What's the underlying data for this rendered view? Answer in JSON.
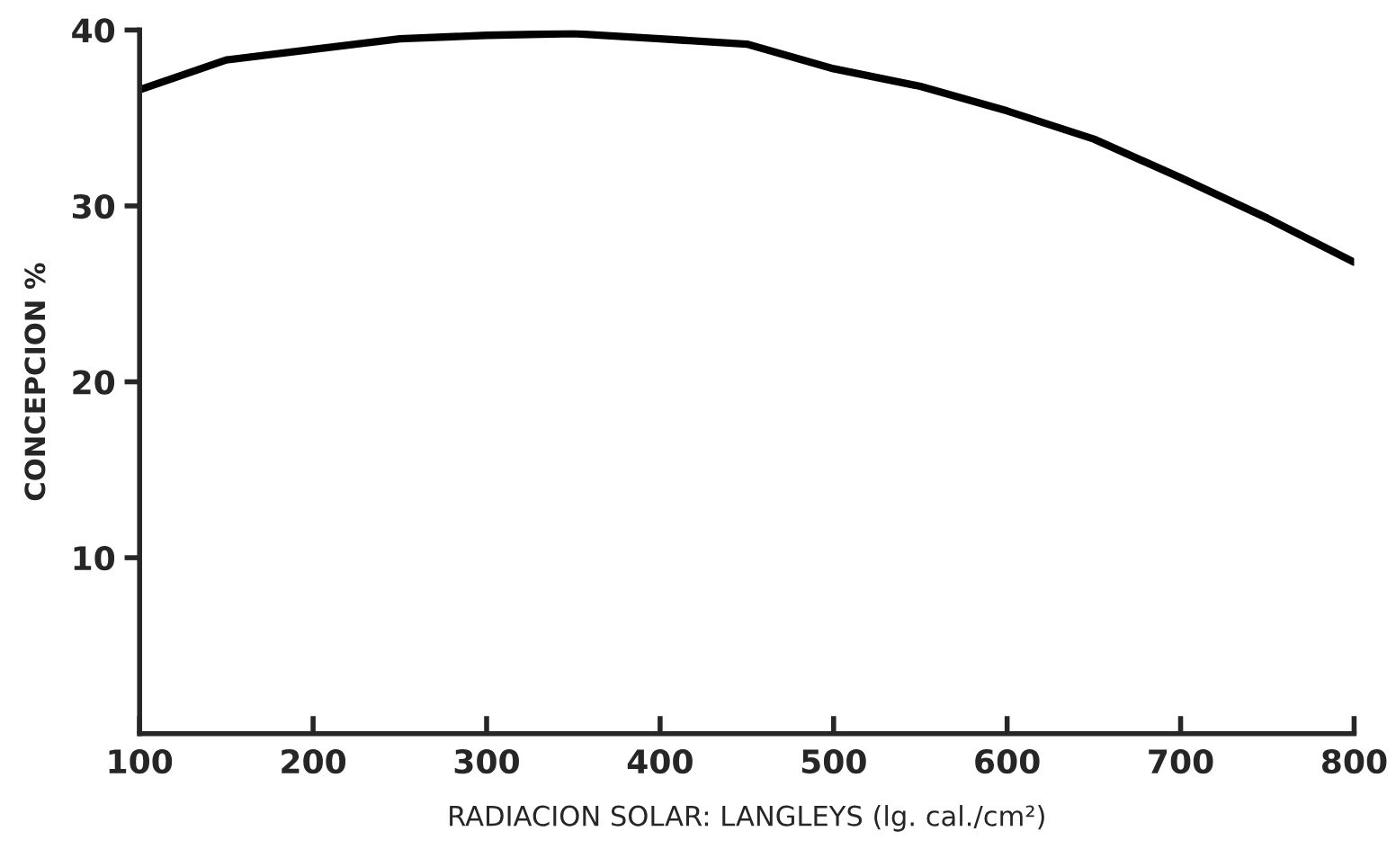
{
  "chart_data": {
    "type": "line",
    "xlabel": "RADIACION SOLAR: LANGLEYS (lg. cal./cm²)",
    "ylabel": "CONCEPCION %",
    "x": [
      100,
      150,
      200,
      250,
      300,
      350,
      400,
      450,
      500,
      550,
      600,
      650,
      700,
      750,
      800
    ],
    "series": [
      {
        "color": "#000000",
        "values": [
          36.6,
          38.3,
          38.9,
          39.5,
          39.7,
          39.8,
          39.5,
          39.2,
          37.8,
          36.8,
          35.4,
          33.8,
          31.6,
          29.3,
          26.8
        ]
      }
    ],
    "xlim": [
      100,
      800
    ],
    "ylim": [
      0,
      40
    ],
    "xticks": [
      100,
      200,
      300,
      400,
      500,
      600,
      700,
      800
    ],
    "yticks": [
      10,
      20,
      30,
      40
    ],
    "grid": false,
    "marker": "none",
    "line_style": "solid"
  }
}
